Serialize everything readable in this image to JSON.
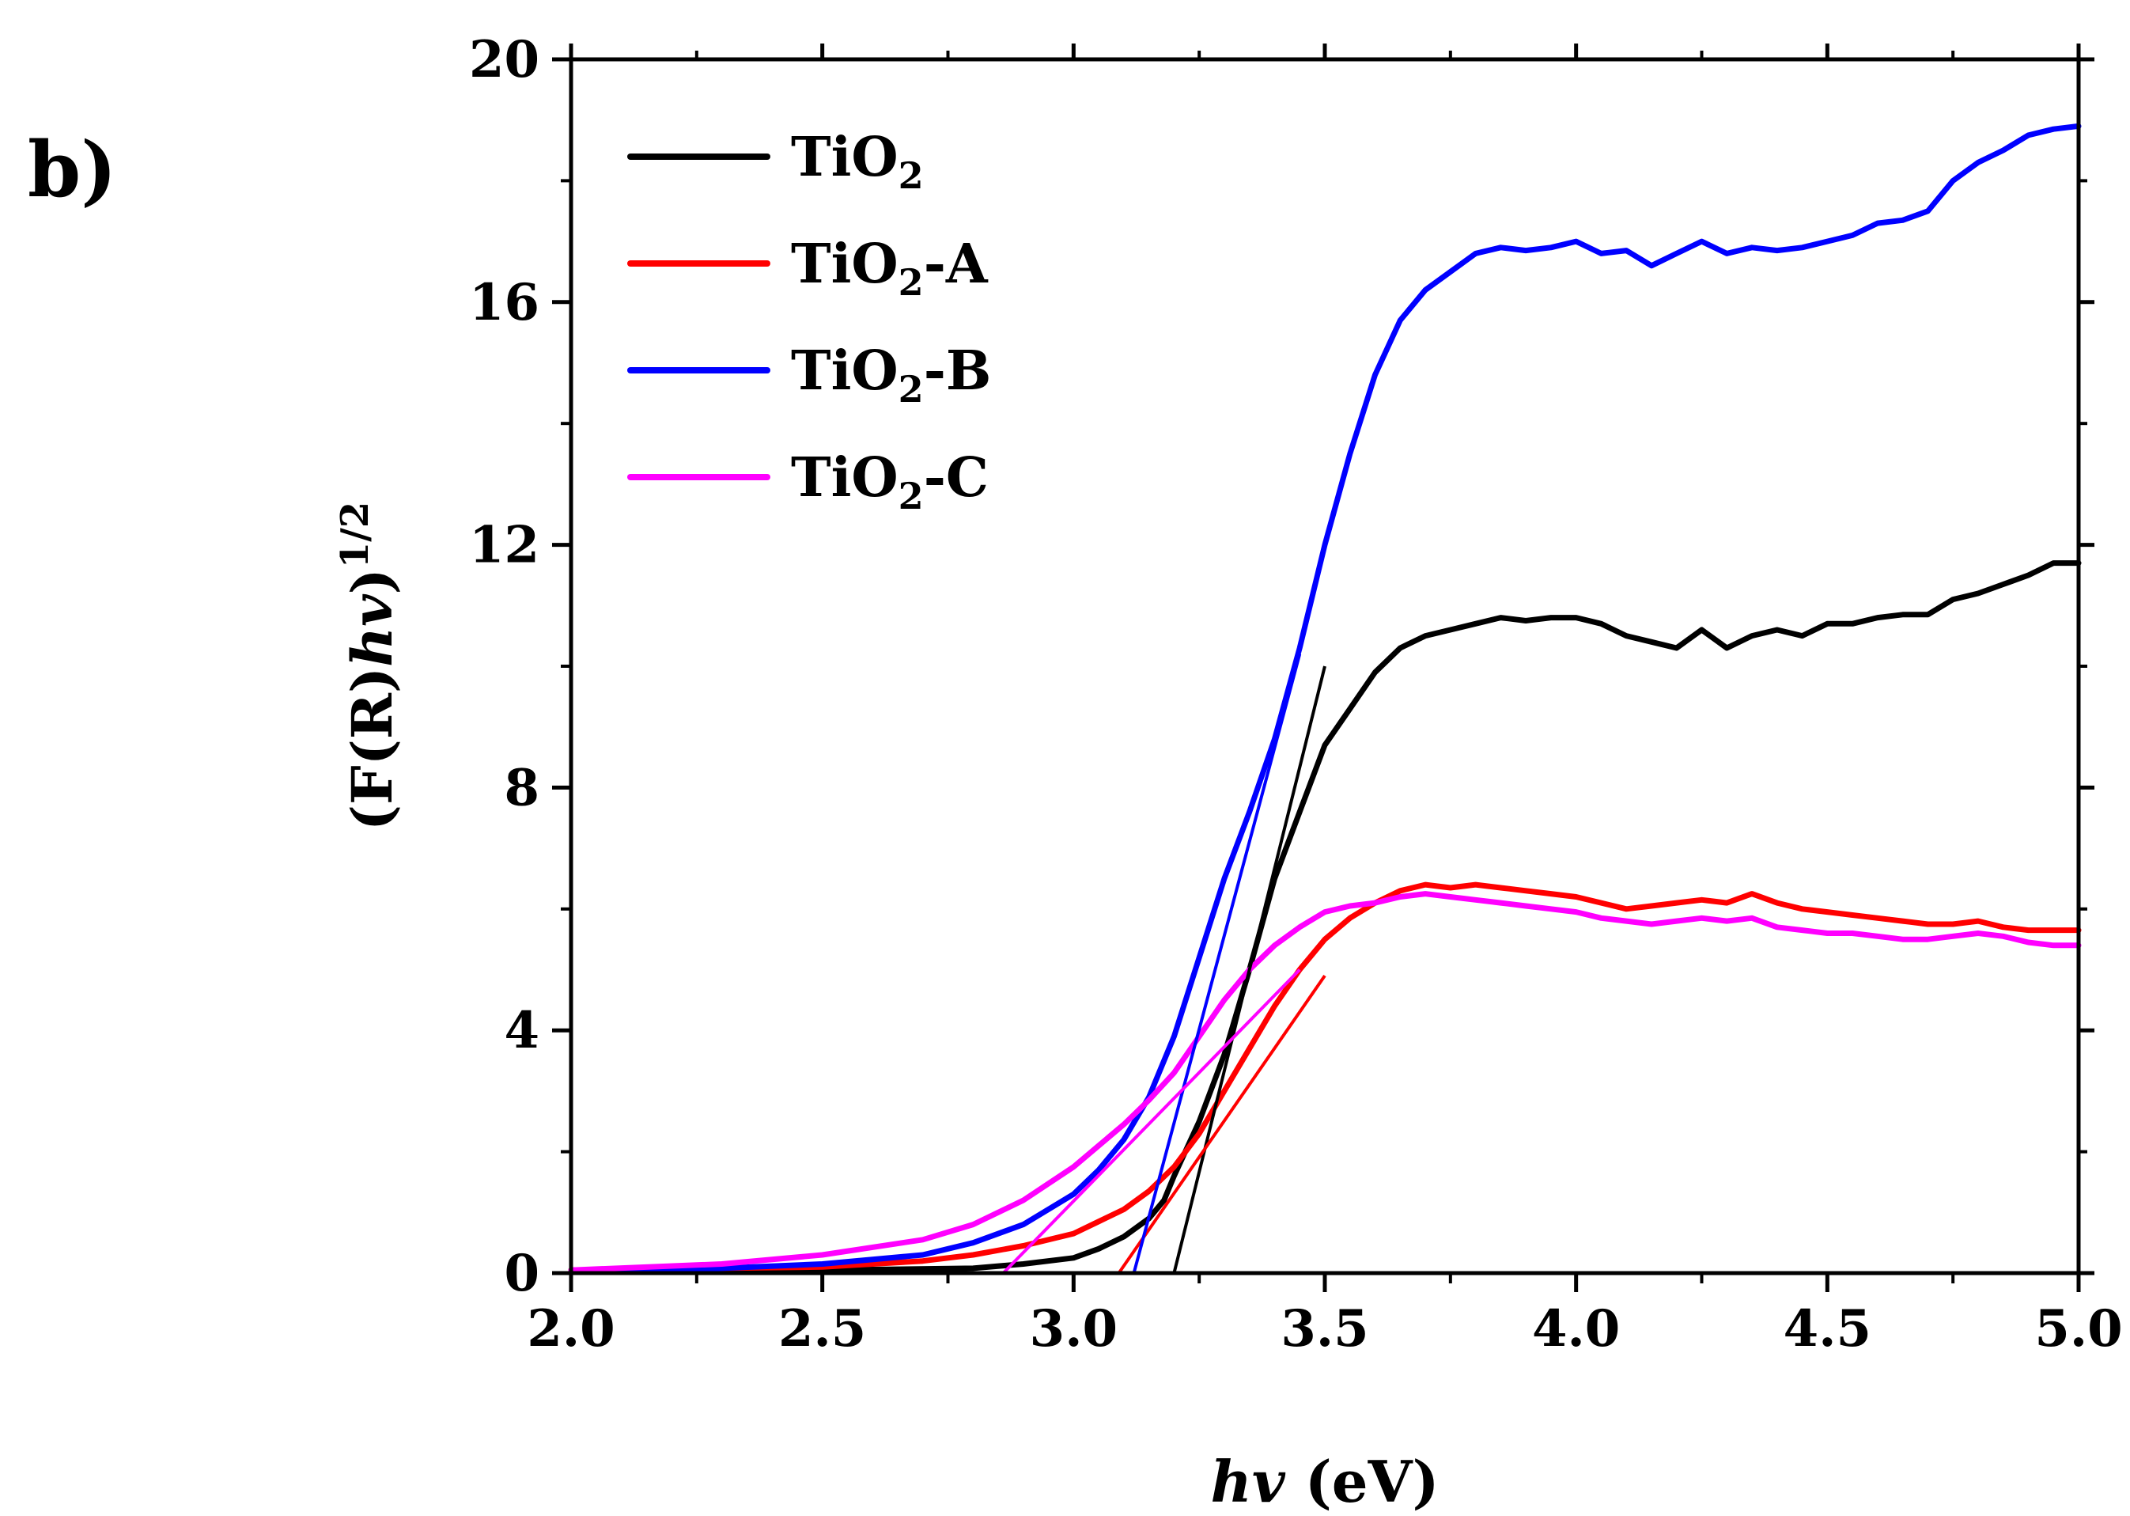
{
  "panel_label": "b)",
  "chart_data": {
    "type": "line",
    "title": "",
    "xlabel": "hv (eV)",
    "xlabel_parts": {
      "italic": "hv",
      "rest": " (eV)"
    },
    "ylabel_parts": {
      "prefix": "(F(R)",
      "italic": "hv",
      "suffix": ")",
      "superscript": "1/2"
    },
    "xlim": [
      2.0,
      5.0
    ],
    "ylim": [
      0,
      20
    ],
    "xticks": [
      2.0,
      2.5,
      3.0,
      3.5,
      4.0,
      4.5,
      5.0
    ],
    "xtick_labels": [
      "2.0",
      "2.5",
      "3.0",
      "3.5",
      "4.0",
      "4.5",
      "5.0"
    ],
    "yticks": [
      0,
      4,
      8,
      12,
      16,
      20
    ],
    "ytick_labels": [
      "0",
      "4",
      "8",
      "12",
      "16",
      "20"
    ],
    "grid": false,
    "legend_position": "top-left",
    "series": [
      {
        "name": "TiO2",
        "label_main": "TiO",
        "label_sub": "2",
        "label_suffix": "",
        "color": "#000000",
        "x": [
          2.0,
          2.5,
          2.8,
          2.9,
          3.0,
          3.05,
          3.1,
          3.15,
          3.18,
          3.2,
          3.25,
          3.3,
          3.35,
          3.4,
          3.45,
          3.5,
          3.55,
          3.6,
          3.65,
          3.7,
          3.75,
          3.8,
          3.85,
          3.9,
          3.95,
          4.0,
          4.05,
          4.1,
          4.15,
          4.2,
          4.25,
          4.3,
          4.35,
          4.4,
          4.45,
          4.5,
          4.55,
          4.6,
          4.65,
          4.7,
          4.75,
          4.8,
          4.85,
          4.9,
          4.95,
          5.0
        ],
        "y": [
          0.05,
          0.05,
          0.08,
          0.15,
          0.25,
          0.4,
          0.6,
          0.9,
          1.2,
          1.6,
          2.5,
          3.6,
          5.0,
          6.5,
          7.6,
          8.7,
          9.3,
          9.9,
          10.3,
          10.5,
          10.6,
          10.7,
          10.8,
          10.75,
          10.8,
          10.8,
          10.7,
          10.5,
          10.4,
          10.3,
          10.6,
          10.3,
          10.5,
          10.6,
          10.5,
          10.7,
          10.7,
          10.8,
          10.85,
          10.85,
          11.1,
          11.2,
          11.35,
          11.5,
          11.7,
          11.7
        ]
      },
      {
        "name": "TiO2-A",
        "label_main": "TiO",
        "label_sub": "2",
        "label_suffix": "-A",
        "color": "#ff0000",
        "x": [
          2.0,
          2.5,
          2.7,
          2.8,
          2.9,
          3.0,
          3.05,
          3.1,
          3.15,
          3.2,
          3.25,
          3.3,
          3.35,
          3.4,
          3.45,
          3.5,
          3.55,
          3.6,
          3.65,
          3.7,
          3.75,
          3.8,
          3.85,
          3.9,
          3.95,
          4.0,
          4.05,
          4.1,
          4.15,
          4.2,
          4.25,
          4.3,
          4.35,
          4.4,
          4.45,
          4.5,
          4.55,
          4.6,
          4.65,
          4.7,
          4.75,
          4.8,
          4.85,
          4.9,
          4.95,
          5.0
        ],
        "y": [
          0.05,
          0.1,
          0.2,
          0.3,
          0.45,
          0.65,
          0.85,
          1.05,
          1.35,
          1.75,
          2.3,
          3.0,
          3.7,
          4.4,
          5.0,
          5.5,
          5.85,
          6.1,
          6.3,
          6.4,
          6.35,
          6.4,
          6.35,
          6.3,
          6.25,
          6.2,
          6.1,
          6.0,
          6.05,
          6.1,
          6.15,
          6.1,
          6.25,
          6.1,
          6.0,
          5.95,
          5.9,
          5.85,
          5.8,
          5.75,
          5.75,
          5.8,
          5.7,
          5.65,
          5.65,
          5.65
        ]
      },
      {
        "name": "TiO2-B",
        "label_main": "TiO",
        "label_sub": "2",
        "label_suffix": "-B",
        "color": "#0000ff",
        "x": [
          2.0,
          2.3,
          2.5,
          2.7,
          2.8,
          2.9,
          3.0,
          3.05,
          3.1,
          3.15,
          3.2,
          3.25,
          3.3,
          3.35,
          3.4,
          3.45,
          3.5,
          3.55,
          3.6,
          3.65,
          3.7,
          3.75,
          3.8,
          3.85,
          3.9,
          3.95,
          4.0,
          4.05,
          4.1,
          4.15,
          4.2,
          4.25,
          4.3,
          4.35,
          4.4,
          4.45,
          4.5,
          4.55,
          4.6,
          4.65,
          4.7,
          4.75,
          4.8,
          4.85,
          4.9,
          4.95,
          5.0
        ],
        "y": [
          0.02,
          0.08,
          0.15,
          0.3,
          0.5,
          0.8,
          1.3,
          1.7,
          2.2,
          2.9,
          3.9,
          5.2,
          6.5,
          7.6,
          8.8,
          10.3,
          12.0,
          13.5,
          14.8,
          15.7,
          16.2,
          16.5,
          16.8,
          16.9,
          16.85,
          16.9,
          17.0,
          16.8,
          16.85,
          16.6,
          16.8,
          17.0,
          16.8,
          16.9,
          16.85,
          16.9,
          17.0,
          17.1,
          17.3,
          17.35,
          17.5,
          18.0,
          18.3,
          18.5,
          18.75,
          18.85,
          18.9
        ]
      },
      {
        "name": "TiO2-C",
        "label_main": "TiO",
        "label_sub": "2",
        "label_suffix": "-C",
        "color": "#ff00ff",
        "x": [
          2.0,
          2.3,
          2.5,
          2.7,
          2.8,
          2.9,
          3.0,
          3.05,
          3.1,
          3.15,
          3.2,
          3.25,
          3.3,
          3.35,
          3.4,
          3.45,
          3.5,
          3.55,
          3.6,
          3.65,
          3.7,
          3.75,
          3.8,
          3.85,
          3.9,
          3.95,
          4.0,
          4.05,
          4.1,
          4.15,
          4.2,
          4.25,
          4.3,
          4.35,
          4.4,
          4.45,
          4.5,
          4.55,
          4.6,
          4.65,
          4.7,
          4.75,
          4.8,
          4.85,
          4.9,
          4.95,
          5.0
        ],
        "y": [
          0.05,
          0.15,
          0.3,
          0.55,
          0.8,
          1.2,
          1.75,
          2.1,
          2.45,
          2.85,
          3.3,
          3.9,
          4.5,
          5.0,
          5.4,
          5.7,
          5.95,
          6.05,
          6.1,
          6.2,
          6.25,
          6.2,
          6.15,
          6.1,
          6.05,
          6.0,
          5.95,
          5.85,
          5.8,
          5.75,
          5.8,
          5.85,
          5.8,
          5.85,
          5.7,
          5.65,
          5.6,
          5.6,
          5.55,
          5.5,
          5.5,
          5.55,
          5.6,
          5.55,
          5.45,
          5.4,
          5.4
        ]
      }
    ],
    "fit_lines": [
      {
        "series": "TiO2",
        "color": "#000000",
        "x": [
          3.2,
          3.5
        ],
        "y": [
          0,
          10.0
        ]
      },
      {
        "series": "TiO2-A",
        "color": "#ff0000",
        "x": [
          3.09,
          3.5
        ],
        "y": [
          0,
          4.9
        ]
      },
      {
        "series": "TiO2-B",
        "color": "#0000ff",
        "x": [
          3.12,
          3.45
        ],
        "y": [
          0,
          10.2
        ]
      },
      {
        "series": "TiO2-C",
        "color": "#ff00ff",
        "x": [
          2.86,
          3.45
        ],
        "y": [
          0,
          5.0
        ]
      }
    ]
  }
}
